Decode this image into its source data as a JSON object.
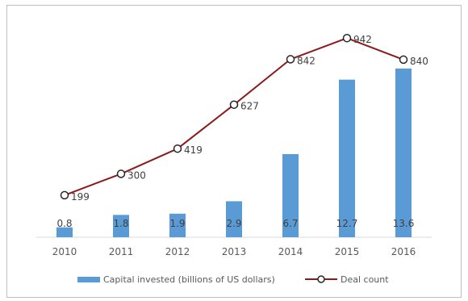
{
  "chart_data": {
    "type": "bar",
    "categories": [
      "2010",
      "2011",
      "2012",
      "2013",
      "2014",
      "2015",
      "2016"
    ],
    "series": [
      {
        "name": "Capital invested (billions of US dollars)",
        "type": "bar",
        "values": [
          0.8,
          1.8,
          1.9,
          2.9,
          6.7,
          12.7,
          13.6
        ],
        "color": "#5b9bd5"
      },
      {
        "name": "Deal count",
        "type": "line",
        "marker": "circle",
        "values": [
          199,
          300,
          419,
          627,
          842,
          942,
          840
        ],
        "color": "#8b1a1a"
      }
    ],
    "bar_ylim": [
      0,
      16
    ],
    "line_ylim": [
      0,
      1000
    ],
    "grid": false,
    "legend_position": "bottom"
  }
}
